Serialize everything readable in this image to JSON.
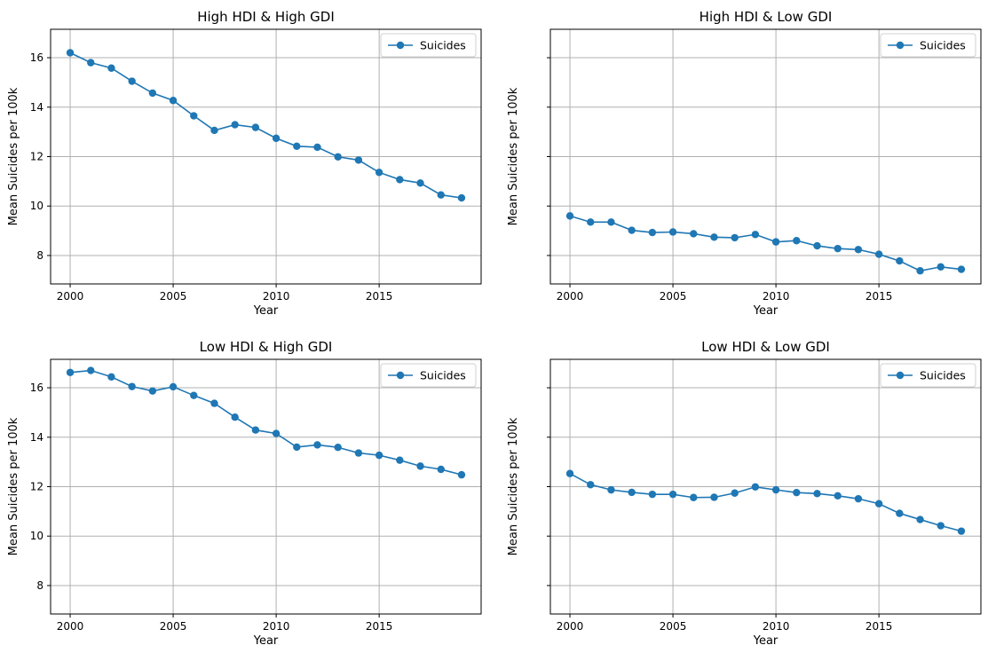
{
  "figure": {
    "shared_ylabel": "Mean Suicides per 100k",
    "shared_xlabel": "Year"
  },
  "chart_data": [
    {
      "type": "line",
      "title": "High HDI & High GDI",
      "xlabel": "Year",
      "ylabel": "Mean Suicides per 100k",
      "x": [
        2000,
        2001,
        2002,
        2003,
        2004,
        2005,
        2006,
        2007,
        2008,
        2009,
        2010,
        2011,
        2012,
        2013,
        2014,
        2015,
        2016,
        2017,
        2018,
        2019
      ],
      "xticks": [
        2000,
        2005,
        2010,
        2015
      ],
      "yticks": [
        8,
        10,
        12,
        14,
        16
      ],
      "show_yticklabels": true,
      "xlim": [
        1999.05,
        2019.95
      ],
      "ylim": [
        6.85,
        17.15
      ],
      "grid": true,
      "legend": "upper right",
      "series": [
        {
          "name": "Suicides",
          "marker": "circle",
          "color": "#1f77b4",
          "values": [
            16.2,
            15.8,
            15.58,
            15.05,
            14.57,
            14.27,
            13.65,
            13.06,
            13.29,
            13.18,
            12.74,
            12.42,
            12.38,
            11.99,
            11.86,
            11.36,
            11.07,
            10.93,
            10.45,
            10.33
          ]
        }
      ]
    },
    {
      "type": "line",
      "title": "High HDI & Low GDI",
      "xlabel": "Year",
      "ylabel": "Mean Suicides per 100k",
      "x": [
        2000,
        2001,
        2002,
        2003,
        2004,
        2005,
        2006,
        2007,
        2008,
        2009,
        2010,
        2011,
        2012,
        2013,
        2014,
        2015,
        2016,
        2017,
        2018,
        2019
      ],
      "xticks": [
        2000,
        2005,
        2010,
        2015
      ],
      "yticks": [
        8,
        10,
        12,
        14,
        16
      ],
      "show_yticklabels": false,
      "xlim": [
        1999.05,
        2019.95
      ],
      "ylim": [
        6.85,
        17.15
      ],
      "grid": true,
      "legend": "upper right",
      "series": [
        {
          "name": "Suicides",
          "marker": "circle",
          "color": "#1f77b4",
          "values": [
            9.6,
            9.35,
            9.35,
            9.02,
            8.93,
            8.95,
            8.88,
            8.74,
            8.72,
            8.85,
            8.55,
            8.6,
            8.39,
            8.28,
            8.24,
            8.05,
            7.78,
            7.38,
            7.54,
            7.44
          ]
        }
      ]
    },
    {
      "type": "line",
      "title": "Low HDI & High GDI",
      "xlabel": "Year",
      "ylabel": "Mean Suicides per 100k",
      "x": [
        2000,
        2001,
        2002,
        2003,
        2004,
        2005,
        2006,
        2007,
        2008,
        2009,
        2010,
        2011,
        2012,
        2013,
        2014,
        2015,
        2016,
        2017,
        2018,
        2019
      ],
      "xticks": [
        2000,
        2005,
        2010,
        2015
      ],
      "yticks": [
        8,
        10,
        12,
        14,
        16
      ],
      "show_yticklabels": true,
      "xlim": [
        1999.05,
        2019.95
      ],
      "ylim": [
        6.85,
        17.15
      ],
      "grid": true,
      "legend": "upper right",
      "series": [
        {
          "name": "Suicides",
          "marker": "circle",
          "color": "#1f77b4",
          "values": [
            16.62,
            16.7,
            16.44,
            16.05,
            15.87,
            16.04,
            15.69,
            15.37,
            14.81,
            14.29,
            14.15,
            13.6,
            13.69,
            13.59,
            13.36,
            13.27,
            13.07,
            12.83,
            12.7,
            12.48
          ]
        }
      ]
    },
    {
      "type": "line",
      "title": "Low HDI & Low GDI",
      "xlabel": "Year",
      "ylabel": "Mean Suicides per 100k",
      "x": [
        2000,
        2001,
        2002,
        2003,
        2004,
        2005,
        2006,
        2007,
        2008,
        2009,
        2010,
        2011,
        2012,
        2013,
        2014,
        2015,
        2016,
        2017,
        2018,
        2019
      ],
      "xticks": [
        2000,
        2005,
        2010,
        2015
      ],
      "yticks": [
        8,
        10,
        12,
        14,
        16
      ],
      "show_yticklabels": false,
      "xlim": [
        1999.05,
        2019.95
      ],
      "ylim": [
        6.85,
        17.15
      ],
      "grid": true,
      "legend": "upper right",
      "series": [
        {
          "name": "Suicides",
          "marker": "circle",
          "color": "#1f77b4",
          "values": [
            12.53,
            12.08,
            11.87,
            11.77,
            11.69,
            11.69,
            11.56,
            11.57,
            11.74,
            11.99,
            11.87,
            11.76,
            11.72,
            11.63,
            11.51,
            11.31,
            10.92,
            10.67,
            10.42,
            10.2
          ]
        }
      ]
    }
  ]
}
